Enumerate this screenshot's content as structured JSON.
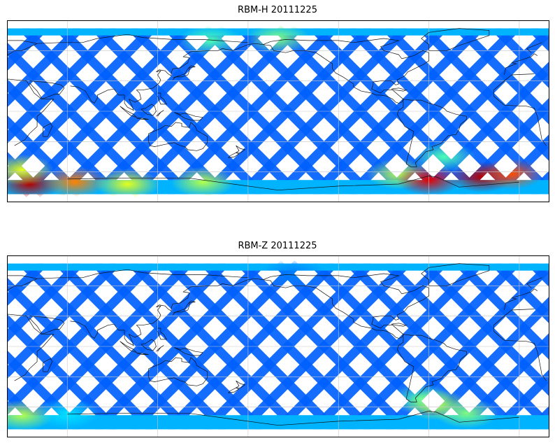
{
  "panels": [
    {
      "title": "RBM-H 20111225",
      "colormap": "jet",
      "hotspots": [
        {
          "lon": 35,
          "lat": -72,
          "level": 0.95
        },
        {
          "lon": 65,
          "lat": -70,
          "level": 0.75
        },
        {
          "lon": 100,
          "lat": -72,
          "level": 0.6
        },
        {
          "lon": 150,
          "lat": -70,
          "level": 0.55
        },
        {
          "lon": 30,
          "lat": -58,
          "level": 0.6
        },
        {
          "lon": 155,
          "lat": 70,
          "level": 0.45
        },
        {
          "lon": 200,
          "lat": 72,
          "level": 0.5
        },
        {
          "lon": 280,
          "lat": -62,
          "level": 0.55
        },
        {
          "lon": 300,
          "lat": -68,
          "level": 0.9
        },
        {
          "lon": 335,
          "lat": -65,
          "level": 0.95
        },
        {
          "lon": 355,
          "lat": -62,
          "level": 0.8
        },
        {
          "lon": 310,
          "lat": -45,
          "level": 0.45
        }
      ]
    },
    {
      "title": "RBM-Z 20111225",
      "colormap": "jet",
      "hotspots": [
        {
          "lon": 30,
          "lat": -68,
          "level": 0.55
        },
        {
          "lon": 60,
          "lat": -66,
          "level": 0.35
        },
        {
          "lon": 210,
          "lat": 72,
          "level": 0.25
        },
        {
          "lon": 295,
          "lat": -52,
          "level": 0.45
        },
        {
          "lon": 305,
          "lat": -58,
          "level": 0.55
        },
        {
          "lon": 325,
          "lat": -66,
          "level": 0.5
        }
      ]
    }
  ]
}
